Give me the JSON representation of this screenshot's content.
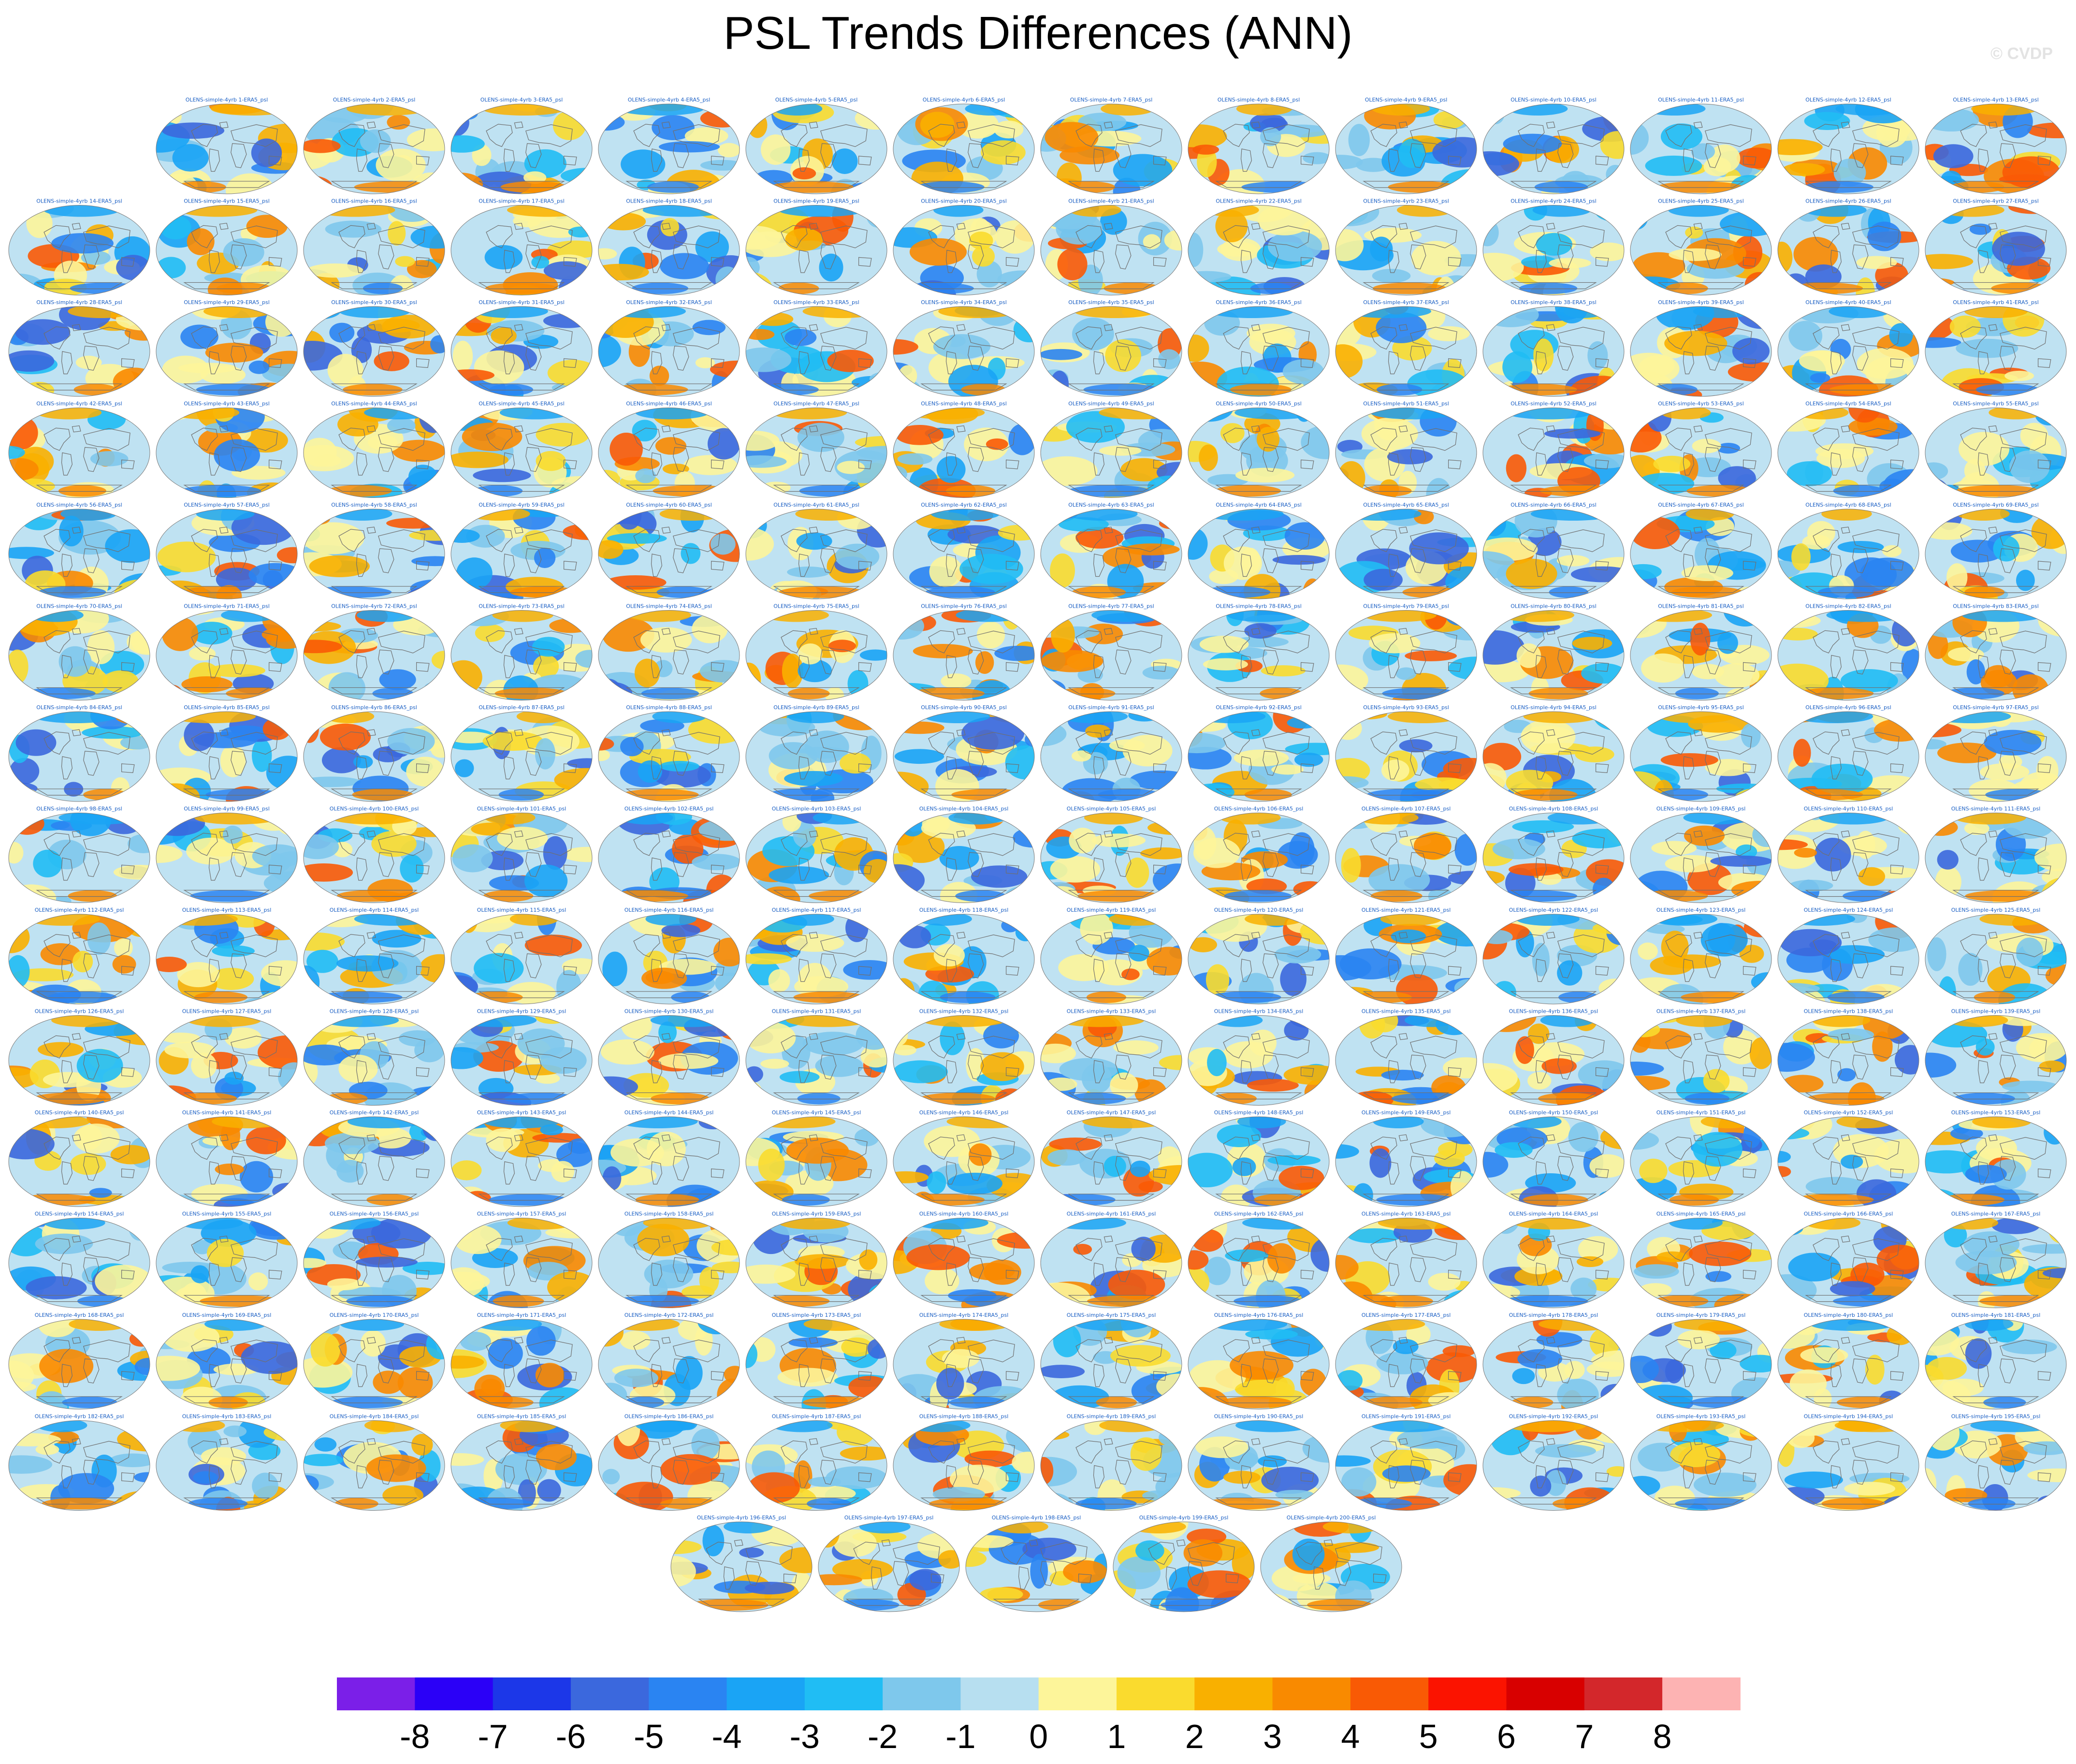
{
  "title": "PSL Trends Differences (ANN)",
  "watermark": "© CVDP",
  "chart_data": {
    "type": "heatmap",
    "title": "PSL Trends Differences (ANN)",
    "description_panels": "Small-multiple global map panels, one per ensemble member, each labeled with its member name",
    "panel_count": 200,
    "panel_label_prefix": "OLENS-simple-4yrb ",
    "panel_label_suffix": "-ERA5_psl",
    "panels": [
      {
        "label": "OLENS-simple-4yrb 1-ERA5_psl"
      },
      {
        "label": "OLENS-simple-4yrb 2-ERA5_psl"
      },
      {
        "label": "OLENS-simple-4yrb 3-ERA5_psl"
      },
      {
        "label": "OLENS-simple-4yrb 4-ERA5_psl"
      },
      {
        "label": "OLENS-simple-4yrb 5-ERA5_psl"
      },
      {
        "label": "OLENS-simple-4yrb 6-ERA5_psl"
      },
      {
        "label": "OLENS-simple-4yrb 7-ERA5_psl"
      },
      {
        "label": "OLENS-simple-4yrb 8-ERA5_psl"
      },
      {
        "label": "OLENS-simple-4yrb 9-ERA5_psl"
      },
      {
        "label": "OLENS-simple-4yrb 10-ERA5_psl"
      },
      {
        "label": "OLENS-simple-4yrb 11-ERA5_psl"
      },
      {
        "label": "OLENS-simple-4yrb 12-ERA5_psl"
      },
      {
        "label": "OLENS-simple-4yrb 13-ERA5_psl"
      },
      {
        "label": "OLENS-simple-4yrb 14-ERA5_psl"
      },
      {
        "label": "OLENS-simple-4yrb 15-ERA5_psl"
      },
      {
        "label": "OLENS-simple-4yrb 16-ERA5_psl"
      },
      {
        "label": "OLENS-simple-4yrb 17-ERA5_psl"
      },
      {
        "label": "OLENS-simple-4yrb 18-ERA5_psl"
      },
      {
        "label": "OLENS-simple-4yrb 19-ERA5_psl"
      },
      {
        "label": "OLENS-simple-4yrb 20-ERA5_psl"
      },
      {
        "label": "OLENS-simple-4yrb 21-ERA5_psl"
      },
      {
        "label": "OLENS-simple-4yrb 22-ERA5_psl"
      },
      {
        "label": "OLENS-simple-4yrb 23-ERA5_psl"
      },
      {
        "label": "OLENS-simple-4yrb 24-ERA5_psl"
      },
      {
        "label": "OLENS-simple-4yrb 25-ERA5_psl"
      },
      {
        "label": "OLENS-simple-4yrb 26-ERA5_psl"
      },
      {
        "label": "OLENS-simple-4yrb 27-ERA5_psl"
      },
      {
        "label": "OLENS-simple-4yrb 28-ERA5_psl"
      },
      {
        "label": "OLENS-simple-4yrb 29-ERA5_psl"
      },
      {
        "label": "OLENS-simple-4yrb 30-ERA5_psl"
      },
      {
        "label": "OLENS-simple-4yrb 31-ERA5_psl"
      },
      {
        "label": "OLENS-simple-4yrb 32-ERA5_psl"
      },
      {
        "label": "OLENS-simple-4yrb 33-ERA5_psl"
      },
      {
        "label": "OLENS-simple-4yrb 34-ERA5_psl"
      },
      {
        "label": "OLENS-simple-4yrb 35-ERA5_psl"
      },
      {
        "label": "OLENS-simple-4yrb 36-ERA5_psl"
      },
      {
        "label": "OLENS-simple-4yrb 37-ERA5_psl"
      },
      {
        "label": "OLENS-simple-4yrb 38-ERA5_psl"
      },
      {
        "label": "OLENS-simple-4yrb 39-ERA5_psl"
      },
      {
        "label": "OLENS-simple-4yrb 40-ERA5_psl"
      },
      {
        "label": "OLENS-simple-4yrb 41-ERA5_psl"
      },
      {
        "label": "OLENS-simple-4yrb 42-ERA5_psl"
      },
      {
        "label": "OLENS-simple-4yrb 43-ERA5_psl"
      },
      {
        "label": "OLENS-simple-4yrb 44-ERA5_psl"
      },
      {
        "label": "OLENS-simple-4yrb 45-ERA5_psl"
      },
      {
        "label": "OLENS-simple-4yrb 46-ERA5_psl"
      },
      {
        "label": "OLENS-simple-4yrb 47-ERA5_psl"
      },
      {
        "label": "OLENS-simple-4yrb 48-ERA5_psl"
      },
      {
        "label": "OLENS-simple-4yrb 49-ERA5_psl"
      },
      {
        "label": "OLENS-simple-4yrb 50-ERA5_psl"
      },
      {
        "label": "OLENS-simple-4yrb 51-ERA5_psl"
      },
      {
        "label": "OLENS-simple-4yrb 52-ERA5_psl"
      },
      {
        "label": "OLENS-simple-4yrb 53-ERA5_psl"
      },
      {
        "label": "OLENS-simple-4yrb 54-ERA5_psl"
      },
      {
        "label": "OLENS-simple-4yrb 55-ERA5_psl"
      },
      {
        "label": "OLENS-simple-4yrb 56-ERA5_psl"
      },
      {
        "label": "OLENS-simple-4yrb 57-ERA5_psl"
      },
      {
        "label": "OLENS-simple-4yrb 58-ERA5_psl"
      },
      {
        "label": "OLENS-simple-4yrb 59-ERA5_psl"
      },
      {
        "label": "OLENS-simple-4yrb 60-ERA5_psl"
      },
      {
        "label": "OLENS-simple-4yrb 61-ERA5_psl"
      },
      {
        "label": "OLENS-simple-4yrb 62-ERA5_psl"
      },
      {
        "label": "OLENS-simple-4yrb 63-ERA5_psl"
      },
      {
        "label": "OLENS-simple-4yrb 64-ERA5_psl"
      },
      {
        "label": "OLENS-simple-4yrb 65-ERA5_psl"
      },
      {
        "label": "OLENS-simple-4yrb 66-ERA5_psl"
      },
      {
        "label": "OLENS-simple-4yrb 67-ERA5_psl"
      },
      {
        "label": "OLENS-simple-4yrb 68-ERA5_psl"
      },
      {
        "label": "OLENS-simple-4yrb 69-ERA5_psl"
      },
      {
        "label": "OLENS-simple-4yrb 70-ERA5_psl"
      },
      {
        "label": "OLENS-simple-4yrb 71-ERA5_psl"
      },
      {
        "label": "OLENS-simple-4yrb 72-ERA5_psl"
      },
      {
        "label": "OLENS-simple-4yrb 73-ERA5_psl"
      },
      {
        "label": "OLENS-simple-4yrb 74-ERA5_psl"
      },
      {
        "label": "OLENS-simple-4yrb 75-ERA5_psl"
      },
      {
        "label": "OLENS-simple-4yrb 76-ERA5_psl"
      },
      {
        "label": "OLENS-simple-4yrb 77-ERA5_psl"
      },
      {
        "label": "OLENS-simple-4yrb 78-ERA5_psl"
      },
      {
        "label": "OLENS-simple-4yrb 79-ERA5_psl"
      },
      {
        "label": "OLENS-simple-4yrb 80-ERA5_psl"
      },
      {
        "label": "OLENS-simple-4yrb 81-ERA5_psl"
      },
      {
        "label": "OLENS-simple-4yrb 82-ERA5_psl"
      },
      {
        "label": "OLENS-simple-4yrb 83-ERA5_psl"
      },
      {
        "label": "OLENS-simple-4yrb 84-ERA5_psl"
      },
      {
        "label": "OLENS-simple-4yrb 85-ERA5_psl"
      },
      {
        "label": "OLENS-simple-4yrb 86-ERA5_psl"
      },
      {
        "label": "OLENS-simple-4yrb 87-ERA5_psl"
      },
      {
        "label": "OLENS-simple-4yrb 88-ERA5_psl"
      },
      {
        "label": "OLENS-simple-4yrb 89-ERA5_psl"
      },
      {
        "label": "OLENS-simple-4yrb 90-ERA5_psl"
      },
      {
        "label": "OLENS-simple-4yrb 91-ERA5_psl"
      },
      {
        "label": "OLENS-simple-4yrb 92-ERA5_psl"
      },
      {
        "label": "OLENS-simple-4yrb 93-ERA5_psl"
      },
      {
        "label": "OLENS-simple-4yrb 94-ERA5_psl"
      },
      {
        "label": "OLENS-simple-4yrb 95-ERA5_psl"
      },
      {
        "label": "OLENS-simple-4yrb 96-ERA5_psl"
      },
      {
        "label": "OLENS-simple-4yrb 97-ERA5_psl"
      },
      {
        "label": "OLENS-simple-4yrb 98-ERA5_psl"
      },
      {
        "label": "OLENS-simple-4yrb 99-ERA5_psl"
      },
      {
        "label": "OLENS-simple-4yrb 100-ERA5_psl"
      },
      {
        "label": "OLENS-simple-4yrb 101-ERA5_psl"
      },
      {
        "label": "OLENS-simple-4yrb 102-ERA5_psl"
      },
      {
        "label": "OLENS-simple-4yrb 103-ERA5_psl"
      },
      {
        "label": "OLENS-simple-4yrb 104-ERA5_psl"
      },
      {
        "label": "OLENS-simple-4yrb 105-ERA5_psl"
      },
      {
        "label": "OLENS-simple-4yrb 106-ERA5_psl"
      },
      {
        "label": "OLENS-simple-4yrb 107-ERA5_psl"
      },
      {
        "label": "OLENS-simple-4yrb 108-ERA5_psl"
      },
      {
        "label": "OLENS-simple-4yrb 109-ERA5_psl"
      },
      {
        "label": "OLENS-simple-4yrb 110-ERA5_psl"
      },
      {
        "label": "OLENS-simple-4yrb 111-ERA5_psl"
      },
      {
        "label": "OLENS-simple-4yrb 112-ERA5_psl"
      },
      {
        "label": "OLENS-simple-4yrb 113-ERA5_psl"
      },
      {
        "label": "OLENS-simple-4yrb 114-ERA5_psl"
      },
      {
        "label": "OLENS-simple-4yrb 115-ERA5_psl"
      },
      {
        "label": "OLENS-simple-4yrb 116-ERA5_psl"
      },
      {
        "label": "OLENS-simple-4yrb 117-ERA5_psl"
      },
      {
        "label": "OLENS-simple-4yrb 118-ERA5_psl"
      },
      {
        "label": "OLENS-simple-4yrb 119-ERA5_psl"
      },
      {
        "label": "OLENS-simple-4yrb 120-ERA5_psl"
      },
      {
        "label": "OLENS-simple-4yrb 121-ERA5_psl"
      },
      {
        "label": "OLENS-simple-4yrb 122-ERA5_psl"
      },
      {
        "label": "OLENS-simple-4yrb 123-ERA5_psl"
      },
      {
        "label": "OLENS-simple-4yrb 124-ERA5_psl"
      },
      {
        "label": "OLENS-simple-4yrb 125-ERA5_psl"
      },
      {
        "label": "OLENS-simple-4yrb 126-ERA5_psl"
      },
      {
        "label": "OLENS-simple-4yrb 127-ERA5_psl"
      },
      {
        "label": "OLENS-simple-4yrb 128-ERA5_psl"
      },
      {
        "label": "OLENS-simple-4yrb 129-ERA5_psl"
      },
      {
        "label": "OLENS-simple-4yrb 130-ERA5_psl"
      },
      {
        "label": "OLENS-simple-4yrb 131-ERA5_psl"
      },
      {
        "label": "OLENS-simple-4yrb 132-ERA5_psl"
      },
      {
        "label": "OLENS-simple-4yrb 133-ERA5_psl"
      },
      {
        "label": "OLENS-simple-4yrb 134-ERA5_psl"
      },
      {
        "label": "OLENS-simple-4yrb 135-ERA5_psl"
      },
      {
        "label": "OLENS-simple-4yrb 136-ERA5_psl"
      },
      {
        "label": "OLENS-simple-4yrb 137-ERA5_psl"
      },
      {
        "label": "OLENS-simple-4yrb 138-ERA5_psl"
      },
      {
        "label": "OLENS-simple-4yrb 139-ERA5_psl"
      },
      {
        "label": "OLENS-simple-4yrb 140-ERA5_psl"
      },
      {
        "label": "OLENS-simple-4yrb 141-ERA5_psl"
      },
      {
        "label": "OLENS-simple-4yrb 142-ERA5_psl"
      },
      {
        "label": "OLENS-simple-4yrb 143-ERA5_psl"
      },
      {
        "label": "OLENS-simple-4yrb 144-ERA5_psl"
      },
      {
        "label": "OLENS-simple-4yrb 145-ERA5_psl"
      },
      {
        "label": "OLENS-simple-4yrb 146-ERA5_psl"
      },
      {
        "label": "OLENS-simple-4yrb 147-ERA5_psl"
      },
      {
        "label": "OLENS-simple-4yrb 148-ERA5_psl"
      },
      {
        "label": "OLENS-simple-4yrb 149-ERA5_psl"
      },
      {
        "label": "OLENS-simple-4yrb 150-ERA5_psl"
      },
      {
        "label": "OLENS-simple-4yrb 151-ERA5_psl"
      },
      {
        "label": "OLENS-simple-4yrb 152-ERA5_psl"
      },
      {
        "label": "OLENS-simple-4yrb 153-ERA5_psl"
      },
      {
        "label": "OLENS-simple-4yrb 154-ERA5_psl"
      },
      {
        "label": "OLENS-simple-4yrb 155-ERA5_psl"
      },
      {
        "label": "OLENS-simple-4yrb 156-ERA5_psl"
      },
      {
        "label": "OLENS-simple-4yrb 157-ERA5_psl"
      },
      {
        "label": "OLENS-simple-4yrb 158-ERA5_psl"
      },
      {
        "label": "OLENS-simple-4yrb 159-ERA5_psl"
      },
      {
        "label": "OLENS-simple-4yrb 160-ERA5_psl"
      },
      {
        "label": "OLENS-simple-4yrb 161-ERA5_psl"
      },
      {
        "label": "OLENS-simple-4yrb 162-ERA5_psl"
      },
      {
        "label": "OLENS-simple-4yrb 163-ERA5_psl"
      },
      {
        "label": "OLENS-simple-4yrb 164-ERA5_psl"
      },
      {
        "label": "OLENS-simple-4yrb 165-ERA5_psl"
      },
      {
        "label": "OLENS-simple-4yrb 166-ERA5_psl"
      },
      {
        "label": "OLENS-simple-4yrb 167-ERA5_psl"
      },
      {
        "label": "OLENS-simple-4yrb 168-ERA5_psl"
      },
      {
        "label": "OLENS-simple-4yrb 169-ERA5_psl"
      },
      {
        "label": "OLENS-simple-4yrb 170-ERA5_psl"
      },
      {
        "label": "OLENS-simple-4yrb 171-ERA5_psl"
      },
      {
        "label": "OLENS-simple-4yrb 172-ERA5_psl"
      },
      {
        "label": "OLENS-simple-4yrb 173-ERA5_psl"
      },
      {
        "label": "OLENS-simple-4yrb 174-ERA5_psl"
      },
      {
        "label": "OLENS-simple-4yrb 175-ERA5_psl"
      },
      {
        "label": "OLENS-simple-4yrb 176-ERA5_psl"
      },
      {
        "label": "OLENS-simple-4yrb 177-ERA5_psl"
      },
      {
        "label": "OLENS-simple-4yrb 178-ERA5_psl"
      },
      {
        "label": "OLENS-simple-4yrb 179-ERA5_psl"
      },
      {
        "label": "OLENS-simple-4yrb 180-ERA5_psl"
      },
      {
        "label": "OLENS-simple-4yrb 181-ERA5_psl"
      },
      {
        "label": "OLENS-simple-4yrb 182-ERA5_psl"
      },
      {
        "label": "OLENS-simple-4yrb 183-ERA5_psl"
      },
      {
        "label": "OLENS-simple-4yrb 184-ERA5_psl"
      },
      {
        "label": "OLENS-simple-4yrb 185-ERA5_psl"
      },
      {
        "label": "OLENS-simple-4yrb 186-ERA5_psl"
      },
      {
        "label": "OLENS-simple-4yrb 187-ERA5_psl"
      },
      {
        "label": "OLENS-simple-4yrb 188-ERA5_psl"
      },
      {
        "label": "OLENS-simple-4yrb 189-ERA5_psl"
      },
      {
        "label": "OLENS-simple-4yrb 190-ERA5_psl"
      },
      {
        "label": "OLENS-simple-4yrb 191-ERA5_psl"
      },
      {
        "label": "OLENS-simple-4yrb 192-ERA5_psl"
      },
      {
        "label": "OLENS-simple-4yrb 193-ERA5_psl"
      },
      {
        "label": "OLENS-simple-4yrb 194-ERA5_psl"
      },
      {
        "label": "OLENS-simple-4yrb 195-ERA5_psl"
      },
      {
        "label": "OLENS-simple-4yrb 196-ERA5_psl"
      },
      {
        "label": "OLENS-simple-4yrb 197-ERA5_psl"
      },
      {
        "label": "OLENS-simple-4yrb 198-ERA5_psl"
      },
      {
        "label": "OLENS-simple-4yrb 199-ERA5_psl"
      },
      {
        "label": "OLENS-simple-4yrb 200-ERA5_psl"
      }
    ],
    "colorbar": {
      "levels": [
        "-8",
        "-7",
        "-6",
        "-5",
        "-4",
        "-3",
        "-2",
        "-1",
        "0",
        "1",
        "2",
        "3",
        "4",
        "5",
        "6",
        "7",
        "8"
      ],
      "colors": [
        "#7b1fe8",
        "#2b00f7",
        "#1c37e8",
        "#3b68dd",
        "#2a84f2",
        "#1aa4f5",
        "#20bdf4",
        "#7ec8ec",
        "#b7dff0",
        "#fdf59a",
        "#fadb2e",
        "#f9b000",
        "#f98a00",
        "#f95a05",
        "#fb1300",
        "#d80000",
        "#d3272b",
        "#fdb3b3"
      ]
    },
    "palette": {
      "ocean_base": "#bfe2f2",
      "neutral_pos": "#fdf59a",
      "coastline": "#6f6f6f"
    }
  }
}
